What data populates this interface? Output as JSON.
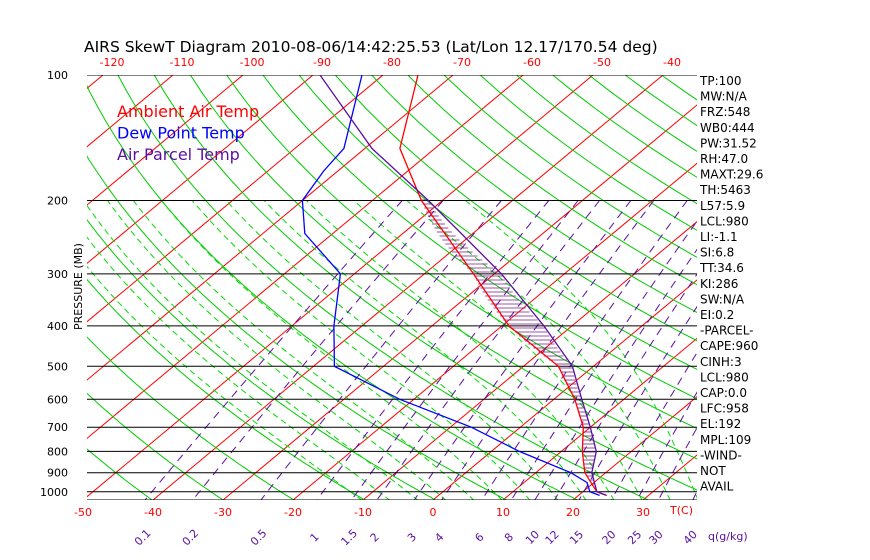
{
  "chart_data": {
    "type": "line",
    "title": "AIRS SkewT Diagram 2010-08-06/14:42:25.53 (Lat/Lon 12.17/170.54 deg)",
    "ylabel": "PRESSURE (MB)",
    "xlabel": "T(C)",
    "mixing_ratio_unit": "q(g/kg)",
    "pressure_ticks": [
      100,
      200,
      300,
      400,
      500,
      600,
      700,
      800,
      900,
      1000
    ],
    "top_temp_ticks": [
      -120,
      -110,
      -100,
      -90,
      -80,
      -70,
      -60,
      -50,
      -40
    ],
    "bottom_temp_ticks": [
      -50,
      -40,
      -30,
      -20,
      -10,
      0,
      10,
      20,
      30
    ],
    "mixing_ratio_ticks": [
      "0.1",
      "0.2",
      "0.5",
      "1",
      "1.5",
      "2",
      "3",
      "4",
      "6",
      "8",
      "10",
      "12",
      "15",
      "20",
      "25",
      "30",
      "40"
    ],
    "legend": [
      {
        "label": "Ambient Air Temp",
        "color": "#ff0000"
      },
      {
        "label": "Dew Point Temp",
        "color": "#0000ff"
      },
      {
        "label": "Air Parcel Temp",
        "color": "#5a0fa0"
      }
    ],
    "series": [
      {
        "name": "Ambient Air Temp",
        "color": "#ff0000",
        "p": [
          100,
          150,
          200,
          300,
          400,
          500,
          600,
          700,
          800,
          900,
          1000,
          1020
        ],
        "T": [
          -75,
          -65,
          -53,
          -33,
          -19,
          -5,
          3,
          9,
          13,
          17,
          22,
          24
        ]
      },
      {
        "name": "Dew Point Temp",
        "color": "#0000ff",
        "p": [
          100,
          150,
          170,
          200,
          240,
          300,
          400,
          500,
          600,
          700,
          800,
          900,
          950,
          1000,
          1020
        ],
        "T": [
          -83,
          -73,
          -72,
          -70,
          -64,
          -52,
          -44,
          -37,
          -22,
          -7,
          4,
          15,
          19,
          21,
          23
        ]
      },
      {
        "name": "Air Parcel Temp",
        "color": "#5a0fa0",
        "p": [
          100,
          150,
          200,
          300,
          400,
          500,
          600,
          700,
          800,
          900,
          1000,
          1020
        ],
        "T": [
          -89,
          -69,
          -52,
          -29,
          -14,
          -3,
          4,
          10,
          15,
          18,
          22,
          24
        ]
      }
    ],
    "indices": [
      "TP:100",
      "MW:N/A",
      "FRZ:548",
      "WB0:444",
      "PW:31.52",
      "RH:47.0",
      "MAXT:29.6",
      "TH:5463",
      "L57:5.9",
      "LCL:980",
      "LI:-1.1",
      "SI:6.8",
      "TT:34.6",
      "KI:286",
      "SW:N/A",
      "EI:0.2",
      "-PARCEL-",
      "CAPE:960",
      "CINH:3",
      "LCL:980",
      "CAP:0.0",
      "LFC:958",
      "EL:192",
      "MPL:109",
      "-WIND-",
      "NOT",
      "AVAIL"
    ],
    "colors": {
      "isotherm": "#ff0000",
      "dry_adiabat": "#00cc00",
      "moist_adiabat": "#00dd00",
      "mixing_ratio": "#5a0fa0",
      "isobar": "#000000"
    }
  }
}
